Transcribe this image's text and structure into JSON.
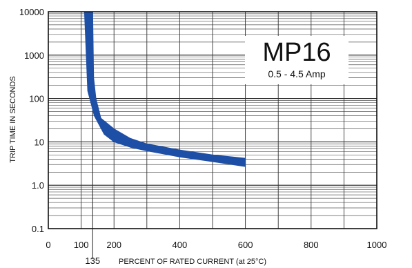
{
  "chart_data": {
    "type": "area",
    "title": "MP16",
    "subtitle": "0.5 - 4.5 Amp",
    "xlabel": "PERCENT OF RATED CURRENT (at 25°C)",
    "ylabel": "TRIP TIME IN SECONDS",
    "xlim": [
      0,
      1000
    ],
    "ylim": [
      0.1,
      10000
    ],
    "y_scale": "log",
    "grid": true,
    "x_ticks": [
      "0",
      "100",
      "200",
      "400",
      "600",
      "800",
      "1000"
    ],
    "x_tick_values": [
      0,
      100,
      200,
      400,
      600,
      800,
      1000
    ],
    "x_extra_tick": {
      "label": "135",
      "value": 135
    },
    "y_ticks": [
      "0.1",
      "1.0",
      "10",
      "100",
      "1000",
      "10000"
    ],
    "y_tick_values": [
      0.1,
      1,
      10,
      100,
      1000,
      10000
    ],
    "band_color": "#1e4fa6",
    "series": [
      {
        "name": "",
        "lower": {
          "x": [
            110,
            120,
            140,
            170,
            200,
            250,
            300,
            400,
            500,
            600
          ],
          "y": [
            10000,
            150,
            40,
            15,
            10,
            7.5,
            6.2,
            4.5,
            3.5,
            2.7
          ]
        },
        "upper": {
          "x": [
            135,
            138,
            145,
            160,
            200,
            250,
            300,
            400,
            500,
            600
          ],
          "y": [
            10000,
            300,
            100,
            35,
            20,
            12,
            9,
            6.5,
            5,
            4.2
          ]
        }
      }
    ]
  }
}
